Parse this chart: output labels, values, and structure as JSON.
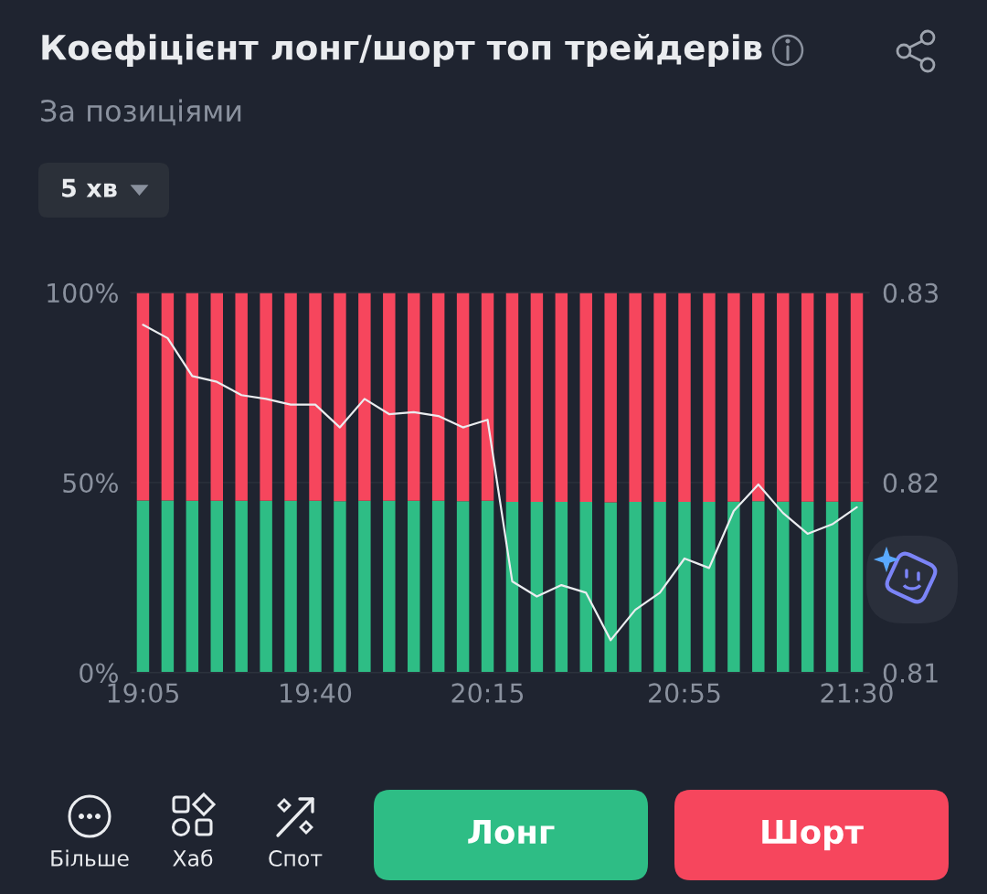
{
  "chart_data": {
    "type": "bar",
    "title": "Коефіцієнт лонг/шорт топ трейдерів",
    "subtitle": "За позиціями",
    "categories": [
      "19:05",
      null,
      null,
      null,
      null,
      null,
      null,
      "19:40",
      null,
      null,
      null,
      null,
      null,
      null,
      "20:15",
      null,
      null,
      null,
      null,
      null,
      null,
      null,
      "20:55",
      null,
      null,
      null,
      null,
      null,
      null,
      "21:30"
    ],
    "stacked": true,
    "series": [
      {
        "color": "#2ebd85",
        "values": [
          45.3,
          45.3,
          45.2,
          45.2,
          45.2,
          45.2,
          45.2,
          45.2,
          45.1,
          45.2,
          45.2,
          45.2,
          45.2,
          45.1,
          45.2,
          44.9,
          44.9,
          44.9,
          44.9,
          44.8,
          44.9,
          44.9,
          44.9,
          44.9,
          45.0,
          45.1,
          45.0,
          45.0,
          45.0,
          45.0
        ]
      },
      {
        "color": "#f6465d",
        "values": [
          54.7,
          54.7,
          54.8,
          54.8,
          54.8,
          54.8,
          54.8,
          54.8,
          54.9,
          54.8,
          54.8,
          54.8,
          54.8,
          54.9,
          54.8,
          55.1,
          55.1,
          55.1,
          55.1,
          55.2,
          55.1,
          55.1,
          55.1,
          55.1,
          55.0,
          54.9,
          55.0,
          55.0,
          55.0,
          55.0
        ]
      },
      {
        "type": "line",
        "axis": "y2",
        "color": "#eaecef",
        "values": [
          0.8283,
          0.8276,
          0.8256,
          0.8253,
          0.8246,
          0.8244,
          0.8241,
          0.8241,
          0.8229,
          0.8244,
          0.8236,
          0.8237,
          0.8235,
          0.8229,
          0.8233,
          0.8148,
          0.814,
          0.8146,
          0.8142,
          0.8117,
          0.8133,
          0.8142,
          0.816,
          0.8155,
          0.8185,
          0.8199,
          0.8184,
          0.8173,
          0.8178,
          0.8187
        ]
      }
    ],
    "ylim": [
      0,
      100
    ],
    "yticks": [
      {
        "value": 0,
        "label": "0%"
      },
      {
        "value": 50,
        "label": "50%"
      },
      {
        "value": 100,
        "label": "100%"
      }
    ],
    "y2lim": [
      0.81,
      0.83
    ],
    "y2ticks": [
      0.81,
      0.82,
      0.83
    ],
    "grid": "y",
    "annotations": [
      "5 хв",
      "Більше",
      "Хаб",
      "Спот",
      "Лонг",
      "Шорт"
    ]
  }
}
